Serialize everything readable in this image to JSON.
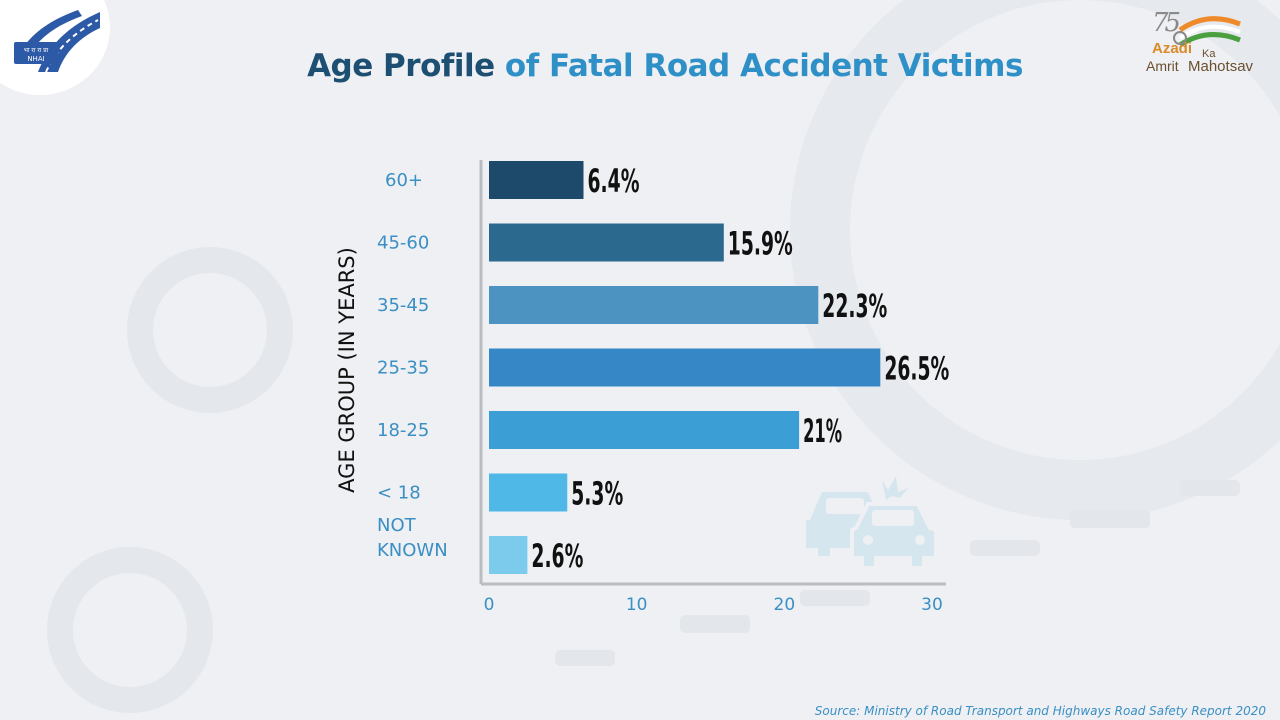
{
  "header": {
    "logo_text_top": "भा रा रा प्रा",
    "logo_text_bottom": "NHAI",
    "title_part1": "Age Profile",
    "title_part2": " of Fatal Road Accident Victims"
  },
  "badge": {
    "number": "75",
    "word1": "Azadi",
    "word2": "Ka",
    "word3": "Amrit",
    "word4": "Mahotsav"
  },
  "footer": {
    "source": "Source: Ministry of Road Transport and Highways Road Safety Report 2020"
  },
  "chart_data": {
    "type": "bar",
    "orientation": "horizontal",
    "title": "Age Profile of Fatal Road Accident Victims",
    "ylabel": "AGE GROUP (IN YEARS)",
    "xlabel": "",
    "categories": [
      "60+",
      "45-60",
      "35-45",
      "25-35",
      "18-25",
      "< 18",
      "NOT KNOWN"
    ],
    "category_lines": [
      [
        "60+"
      ],
      [
        "45-60"
      ],
      [
        "35-45"
      ],
      [
        "25-35"
      ],
      [
        "18-25"
      ],
      [
        "< 18"
      ],
      [
        "NOT",
        "KNOWN"
      ]
    ],
    "values": [
      6.4,
      15.9,
      22.3,
      26.5,
      21,
      5.3,
      2.6
    ],
    "data_labels": [
      "6.4%",
      "15.9%",
      "22.3%",
      "26.5%",
      "21%",
      "5.3%",
      "2.6%"
    ],
    "bar_colors": [
      "#1d4a6a",
      "#2b6a8e",
      "#4d93c2",
      "#3687c5",
      "#3b9fd5",
      "#4fb8e6",
      "#7ccbed"
    ],
    "xlim": [
      0,
      30
    ],
    "xticks": [
      0,
      10,
      20,
      30
    ],
    "grid": false,
    "legend": "none"
  }
}
